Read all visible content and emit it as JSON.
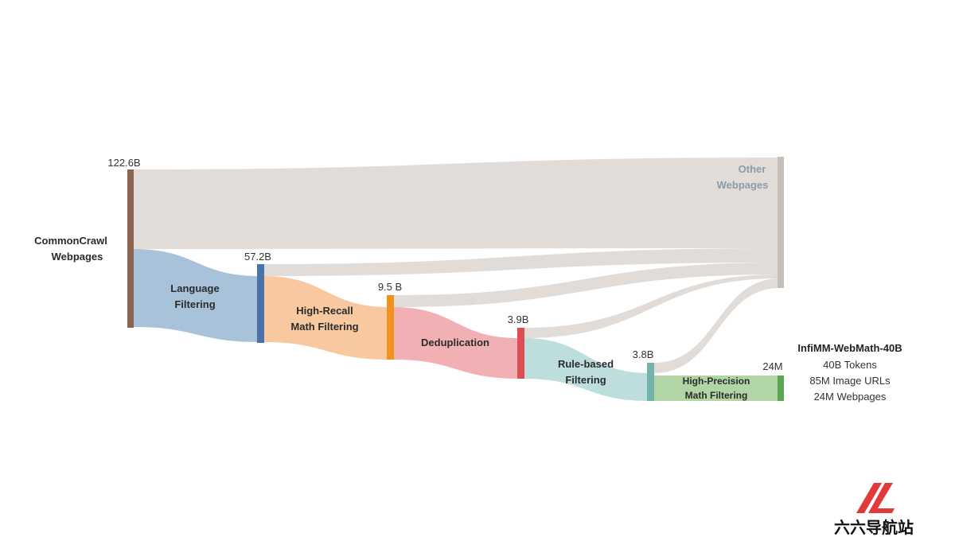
{
  "stages": [
    {
      "id": "commoncrawl",
      "line1": "CommonCrawl",
      "line2": "Webpages",
      "value": "122.6B",
      "color": "#8b6452"
    },
    {
      "id": "language",
      "line1": "Language",
      "line2": "Filtering",
      "value": "57.2B",
      "color": "#4a72a8",
      "flow_color": "#a8c3d9"
    },
    {
      "id": "recall",
      "line1": "High-Recall",
      "line2": "Math Filtering",
      "value": "9.5 B",
      "color": "#f0921e",
      "flow_color": "#f8c9a0"
    },
    {
      "id": "dedup",
      "line1": "Deduplication",
      "line2": "",
      "value": "3.9B",
      "color": "#dd4d54",
      "flow_color": "#f1b0b3"
    },
    {
      "id": "rule",
      "line1": "Rule-based",
      "line2": "Filtering",
      "value": "3.8B",
      "color": "#72b3ad",
      "flow_color": "#bddedd"
    },
    {
      "id": "precision",
      "line1": "High-Precision",
      "line2": "Math Filtering",
      "value": "24M",
      "color": "#5aa551",
      "flow_color": "#b2d5a5"
    }
  ],
  "other": {
    "line1": "Other",
    "line2": "Webpages",
    "color": "#c7bfbb",
    "flow_color": "#e2dcd9"
  },
  "result": {
    "title": "InfiMM-WebMath-40B",
    "lines": [
      "40B Tokens",
      "85M Image URLs",
      "24M Webpages"
    ]
  },
  "watermark": {
    "text": "六六导航站",
    "color": "#e03a3a"
  }
}
